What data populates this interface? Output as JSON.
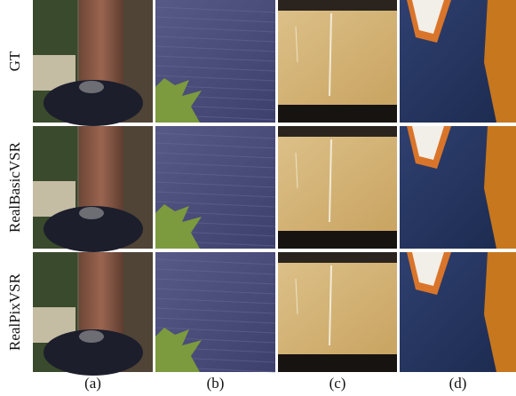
{
  "rows": [
    {
      "label": "GT"
    },
    {
      "label": "RealBasicVSR"
    },
    {
      "label": "RealPixVSR"
    }
  ],
  "columns": [
    {
      "label": "(a)"
    },
    {
      "label": "(b)"
    },
    {
      "label": "(c)"
    },
    {
      "label": "(d)"
    }
  ]
}
